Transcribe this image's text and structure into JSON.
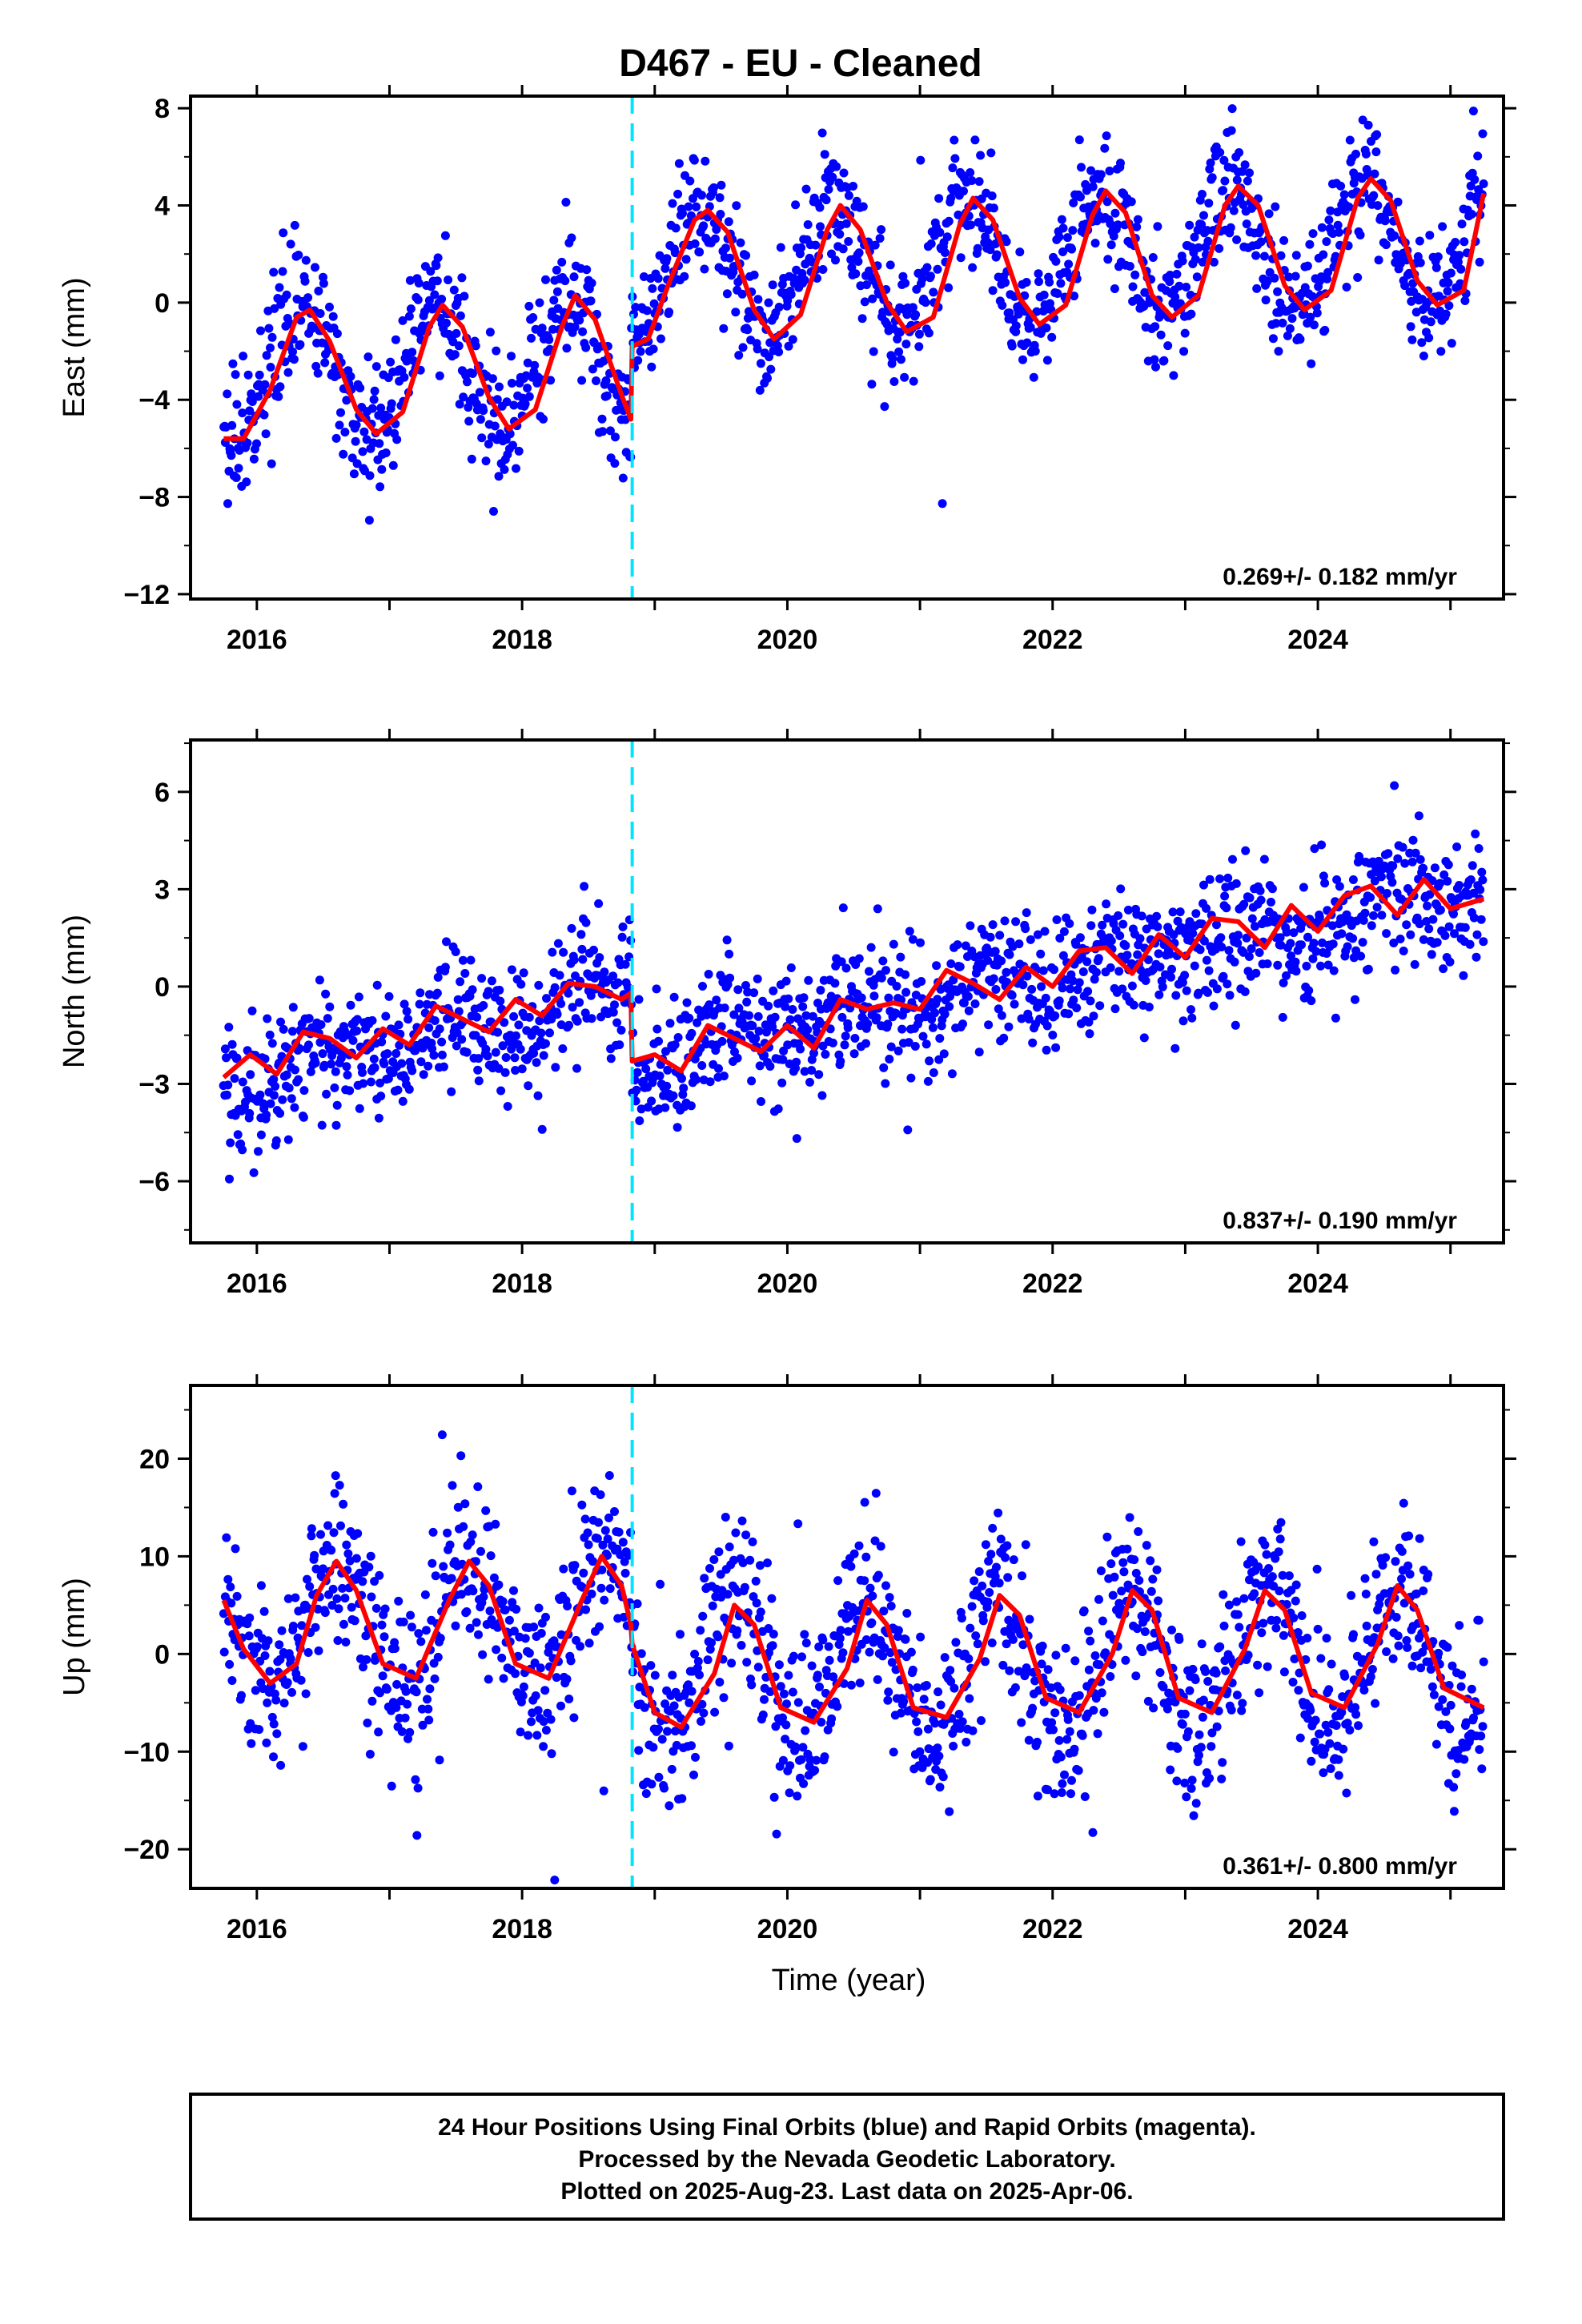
{
  "title": "D467  - EU - Cleaned",
  "xlabel": "Time (year)",
  "footer": {
    "line1": "24 Hour Positions Using Final Orbits (blue) and Rapid Orbits (magenta).",
    "line2": "Processed by the Nevada Geodetic Laboratory.",
    "line3": "Plotted on 2025-Aug-23. Last data on 2025-Apr-06."
  },
  "colors": {
    "points": "#0000ff",
    "model": "#ff0000",
    "offset": "#00e5ff",
    "frame": "#000000"
  },
  "offset_epoch": 2018.83,
  "chart_data": [
    {
      "type": "scatter",
      "id": "east",
      "ylabel": "East (mm)",
      "rate_label": "0.269+/- 0.182 mm/yr",
      "xlim": [
        2015.5,
        2025.4
      ],
      "ylim": [
        -12.2,
        8.5
      ],
      "xticks": [
        2016,
        2018,
        2020,
        2022,
        2024
      ],
      "xtick_labels": [
        "2016",
        "2018",
        "2020",
        "2022",
        "2024"
      ],
      "yticks": [
        -12,
        -8,
        -4,
        0,
        4,
        8
      ],
      "ytick_labels": [
        "−12",
        "−8",
        "−4",
        "0",
        "4",
        "8"
      ],
      "series": [
        {
          "kind": "model",
          "x": [
            2015.75,
            2015.9,
            2016.1,
            2016.3,
            2016.4,
            2016.55,
            2016.75,
            2016.9,
            2017.1,
            2017.3,
            2017.4,
            2017.55,
            2017.75,
            2017.9,
            2018.1,
            2018.3,
            2018.4,
            2018.55,
            2018.75,
            2018.82,
            2018.83,
            2018.95,
            2019.1,
            2019.3,
            2019.4,
            2019.55,
            2019.75,
            2019.9,
            2020.1,
            2020.3,
            2020.4,
            2020.55,
            2020.75,
            2020.9,
            2021.1,
            2021.3,
            2021.4,
            2021.55,
            2021.75,
            2021.9,
            2022.1,
            2022.3,
            2022.4,
            2022.55,
            2022.75,
            2022.9,
            2023.1,
            2023.3,
            2023.4,
            2023.55,
            2023.75,
            2023.9,
            2024.1,
            2024.3,
            2024.4,
            2024.55,
            2024.75,
            2024.9,
            2025.1,
            2025.25
          ],
          "y": [
            -5.6,
            -5.6,
            -3.6,
            -0.6,
            -0.3,
            -1.6,
            -4.4,
            -5.4,
            -4.5,
            -1.0,
            -0.1,
            -1.0,
            -3.9,
            -5.2,
            -4.4,
            -1.0,
            0.3,
            -0.7,
            -3.8,
            -4.8,
            -1.8,
            -1.5,
            0.7,
            3.4,
            3.8,
            2.9,
            -0.3,
            -1.5,
            -0.5,
            3.0,
            4.0,
            3.0,
            0.0,
            -1.2,
            -0.6,
            3.2,
            4.3,
            3.4,
            0.2,
            -0.9,
            -0.1,
            3.6,
            4.6,
            3.7,
            0.3,
            -0.6,
            0.3,
            4.0,
            4.8,
            4.0,
            0.7,
            -0.3,
            0.5,
            4.3,
            5.1,
            4.2,
            0.9,
            -0.1,
            0.5,
            4.5
          ]
        },
        {
          "kind": "points",
          "amp": 2.6,
          "phase": 2016.35,
          "noise": 1.3,
          "trend": [
            [
              2015.75,
              -3.0
            ],
            [
              2018.82,
              -2.4
            ],
            [
              2018.83,
              1.3
            ],
            [
              2025.25,
              2.5
            ]
          ]
        }
      ]
    },
    {
      "type": "scatter",
      "id": "north",
      "ylabel": "North (mm)",
      "rate_label": "0.837+/- 0.190 mm/yr",
      "xlim": [
        2015.5,
        2025.4
      ],
      "ylim": [
        -7.9,
        7.6
      ],
      "xticks": [
        2016,
        2018,
        2020,
        2022,
        2024
      ],
      "xtick_labels": [
        "2016",
        "2018",
        "2020",
        "2022",
        "2024"
      ],
      "yticks": [
        -6,
        -3,
        0,
        3,
        6
      ],
      "ytick_labels": [
        "−6",
        "−3",
        "0",
        "3",
        "6"
      ],
      "series": [
        {
          "kind": "model",
          "x": [
            2015.75,
            2015.95,
            2016.15,
            2016.35,
            2016.55,
            2016.75,
            2016.95,
            2017.15,
            2017.35,
            2017.55,
            2017.75,
            2017.95,
            2018.15,
            2018.35,
            2018.55,
            2018.75,
            2018.82,
            2018.83,
            2019.0,
            2019.2,
            2019.4,
            2019.6,
            2019.8,
            2020.0,
            2020.2,
            2020.4,
            2020.6,
            2020.8,
            2021.0,
            2021.2,
            2021.4,
            2021.6,
            2021.8,
            2022.0,
            2022.2,
            2022.4,
            2022.6,
            2022.8,
            2023.0,
            2023.2,
            2023.4,
            2023.6,
            2023.8,
            2024.0,
            2024.2,
            2024.4,
            2024.6,
            2024.8,
            2025.0,
            2025.25
          ],
          "y": [
            -2.8,
            -2.1,
            -2.7,
            -1.4,
            -1.6,
            -2.2,
            -1.3,
            -1.8,
            -0.6,
            -1.0,
            -1.4,
            -0.4,
            -0.9,
            0.1,
            0.0,
            -0.4,
            -0.2,
            -2.3,
            -2.1,
            -2.6,
            -1.2,
            -1.6,
            -2.0,
            -1.2,
            -1.9,
            -0.4,
            -0.7,
            -0.5,
            -0.7,
            0.5,
            0.1,
            -0.4,
            0.6,
            0.0,
            1.1,
            1.2,
            0.4,
            1.6,
            0.9,
            2.1,
            2.0,
            1.2,
            2.5,
            1.7,
            2.8,
            3.1,
            2.2,
            3.3,
            2.4,
            2.7
          ]
        },
        {
          "kind": "points",
          "amp": 0.5,
          "phase": 2016.5,
          "noise": 1.0,
          "trend": [
            [
              2015.75,
              -2.9
            ],
            [
              2018.82,
              -0.2
            ],
            [
              2018.83,
              -2.2
            ],
            [
              2025.25,
              2.9
            ]
          ]
        }
      ]
    },
    {
      "type": "scatter",
      "id": "up",
      "ylabel": "Up (mm)",
      "rate_label": "0.361+/- 0.800 mm/yr",
      "xlim": [
        2015.5,
        2025.4
      ],
      "ylim": [
        -24,
        27.5
      ],
      "xticks": [
        2016,
        2018,
        2020,
        2022,
        2024
      ],
      "xtick_labels": [
        "2016",
        "2018",
        "2020",
        "2022",
        "2024"
      ],
      "yticks": [
        -20,
        -10,
        0,
        10,
        20
      ],
      "ytick_labels": [
        "−20",
        "−10",
        "0",
        "10",
        "20"
      ],
      "series": [
        {
          "kind": "model",
          "x": [
            2015.75,
            2015.9,
            2016.1,
            2016.3,
            2016.45,
            2016.6,
            2016.75,
            2016.95,
            2017.2,
            2017.45,
            2017.6,
            2017.75,
            2017.95,
            2018.2,
            2018.45,
            2018.6,
            2018.75,
            2018.82,
            2018.83,
            2019.0,
            2019.2,
            2019.45,
            2019.6,
            2019.75,
            2019.95,
            2020.2,
            2020.45,
            2020.6,
            2020.75,
            2020.95,
            2021.2,
            2021.45,
            2021.6,
            2021.75,
            2021.95,
            2022.2,
            2022.45,
            2022.6,
            2022.75,
            2022.95,
            2023.2,
            2023.45,
            2023.6,
            2023.75,
            2023.95,
            2024.2,
            2024.45,
            2024.6,
            2024.75,
            2024.95,
            2025.25
          ],
          "y": [
            5.5,
            0.5,
            -3.0,
            -1.0,
            6.0,
            9.5,
            6.5,
            -1.0,
            -2.5,
            5.5,
            9.5,
            7.0,
            -1.0,
            -2.5,
            5.5,
            10.0,
            7.0,
            3.0,
            1.0,
            -6.0,
            -7.5,
            -2.0,
            5.0,
            3.0,
            -5.5,
            -7.0,
            -1.5,
            5.5,
            3.0,
            -5.5,
            -6.5,
            -0.5,
            6.0,
            4.0,
            -4.5,
            -6.0,
            0.0,
            6.5,
            4.5,
            -4.5,
            -6.0,
            0.5,
            6.5,
            4.5,
            -4.0,
            -5.5,
            1.0,
            7.0,
            4.5,
            -3.5,
            -5.5
          ]
        },
        {
          "kind": "points",
          "amp": 6.8,
          "phase": 2016.6,
          "noise": 4.3,
          "trend": [
            [
              2015.75,
              2.8
            ],
            [
              2018.82,
              3.5
            ],
            [
              2018.83,
              -1.3
            ],
            [
              2025.25,
              -0.5
            ]
          ]
        }
      ]
    }
  ]
}
